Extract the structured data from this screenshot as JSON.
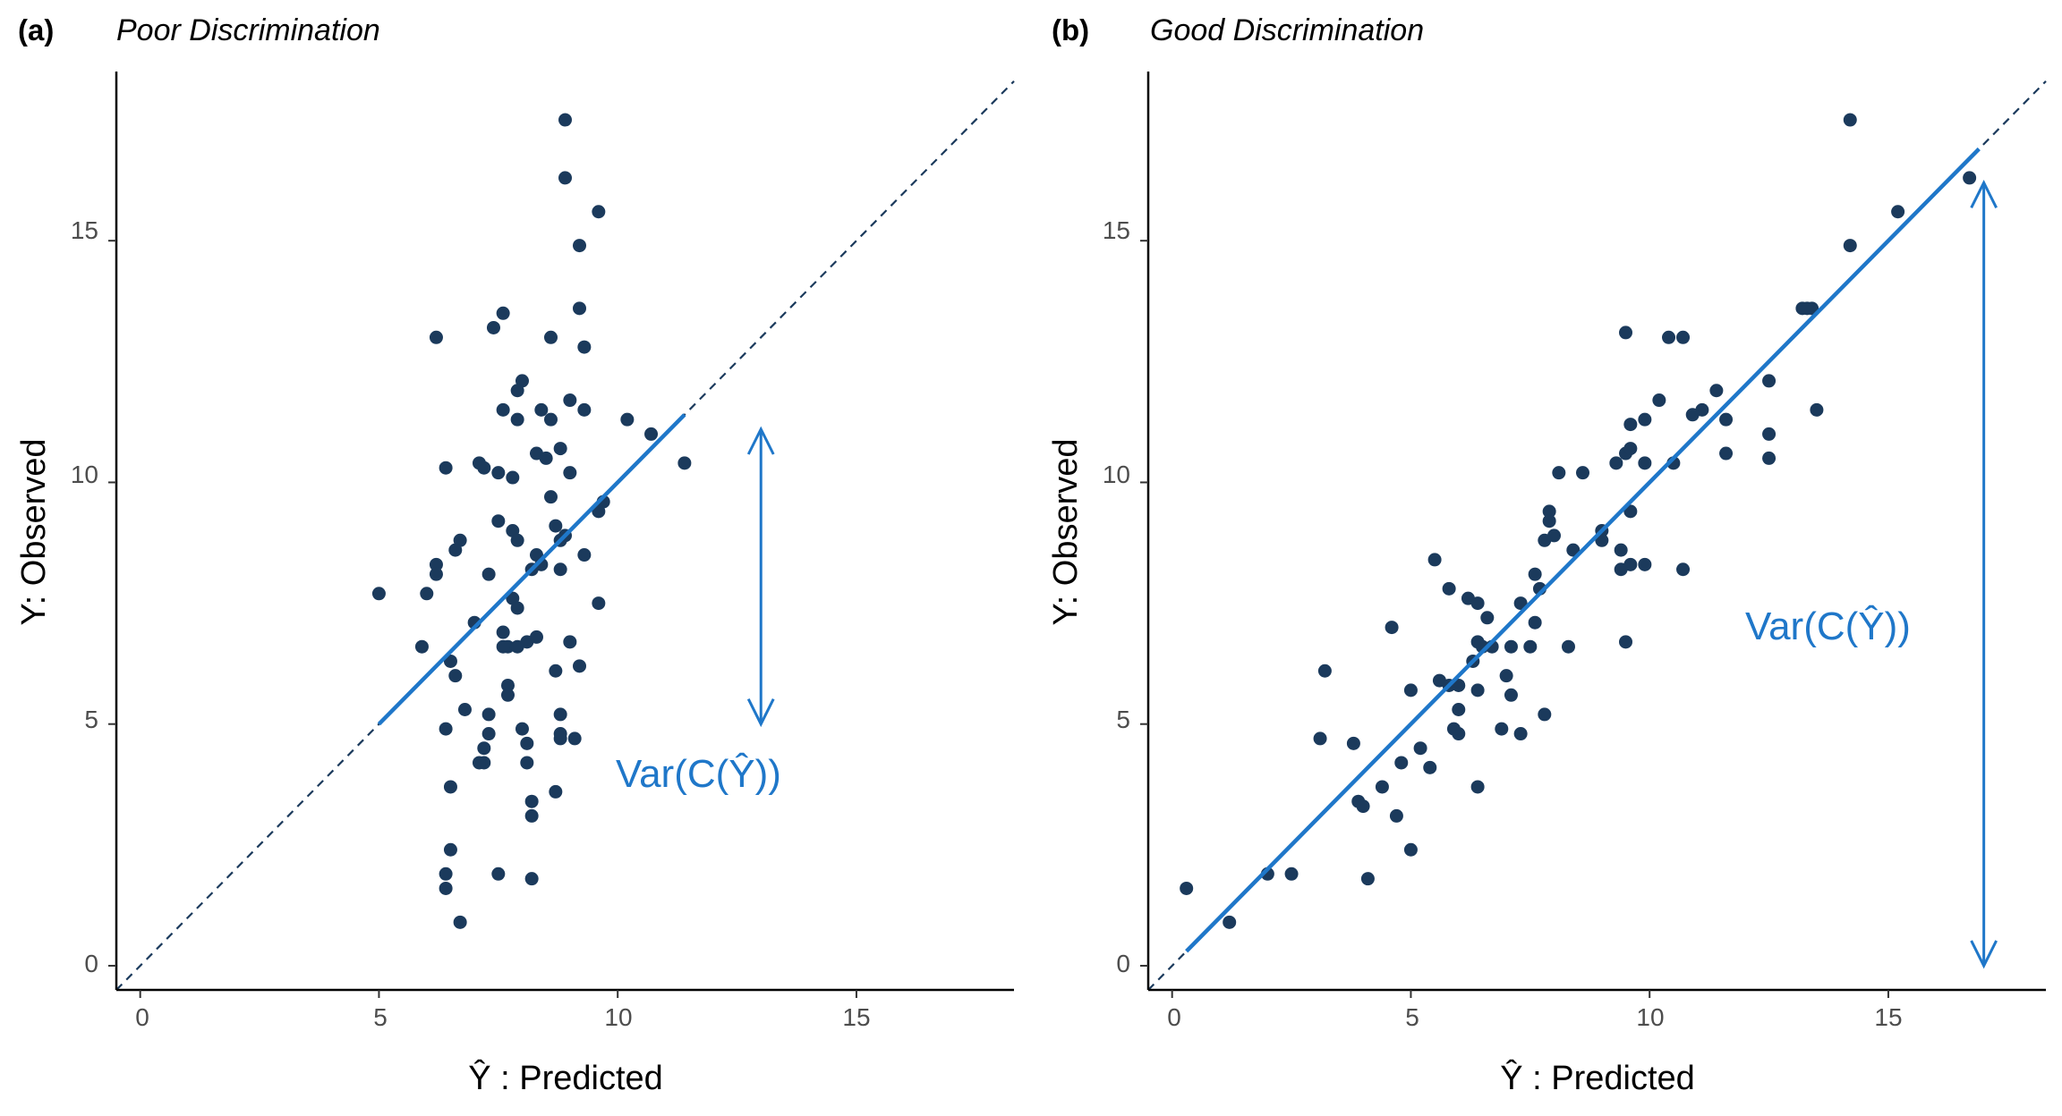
{
  "chart_data": [
    {
      "type": "scatter",
      "panel_tag": "(a)",
      "title": "Poor Discrimination",
      "xlabel": "Ŷ : Predicted",
      "ylabel": "Y: Observed",
      "xlim": [
        -0.5,
        18.3
      ],
      "ylim": [
        -0.5,
        18.5
      ],
      "xticks": [
        "0",
        "5",
        "10",
        "15"
      ],
      "yticks": [
        "0",
        "5",
        "10",
        "15"
      ],
      "grid": false,
      "identity_line": "y = x (dashed)",
      "fit_line": {
        "x": [
          5.0,
          11.4
        ],
        "y": [
          5.0,
          11.4
        ]
      },
      "annotation": {
        "text": "Var(C(Ŷ))",
        "arrow_x": 13.0,
        "arrow_y": [
          5.0,
          11.1
        ]
      },
      "colors": {
        "points": "#1b3a5c",
        "line": "#1f77c9",
        "identity": "#1b3a5c"
      },
      "x": [
        8.9,
        8.9,
        9.6,
        9.2,
        9.2,
        7.6,
        7.4,
        6.2,
        8.6,
        9.3,
        8.0,
        7.9,
        9.0,
        8.4,
        7.6,
        9.3,
        7.9,
        10.2,
        10.7,
        11.4,
        8.6,
        8.3,
        8.8,
        7.1,
        7.2,
        6.4,
        7.5,
        8.5,
        7.8,
        9.0,
        9.7,
        9.6,
        8.6,
        7.5,
        7.8,
        8.7,
        8.9,
        7.9,
        8.8,
        6.7,
        6.6,
        9.3,
        8.3,
        8.4,
        8.8,
        6.2,
        8.2,
        6.2,
        9.6,
        7.3,
        7.8,
        6.0,
        7.0,
        7.9,
        5.0,
        8.1,
        7.6,
        7.7,
        5.9,
        6.5,
        6.6,
        9.0,
        7.6,
        7.9,
        8.3,
        7.7,
        9.2,
        8.7,
        6.8,
        7.3,
        8.8,
        7.7,
        7.3,
        6.4,
        8.0,
        8.8,
        8.8,
        8.1,
        7.2,
        7.2,
        9.1,
        7.1,
        8.1,
        6.5,
        8.7,
        8.2,
        8.2,
        6.5,
        6.4,
        6.4,
        7.5,
        8.2,
        6.7
      ],
      "y": [
        17.5,
        16.3,
        15.6,
        14.9,
        13.6,
        13.5,
        13.2,
        13.0,
        13.0,
        12.8,
        12.1,
        11.9,
        11.7,
        11.5,
        11.5,
        11.5,
        11.3,
        11.3,
        11.0,
        10.4,
        11.3,
        10.6,
        10.7,
        10.4,
        10.3,
        10.3,
        10.2,
        10.5,
        10.1,
        10.2,
        9.6,
        9.4,
        9.7,
        9.2,
        9.0,
        9.1,
        8.9,
        8.8,
        8.8,
        8.8,
        8.6,
        8.5,
        8.5,
        8.3,
        8.2,
        8.3,
        8.2,
        8.1,
        7.5,
        8.1,
        7.6,
        7.7,
        7.1,
        7.4,
        7.7,
        6.7,
        6.9,
        6.6,
        6.6,
        6.3,
        6.0,
        6.7,
        6.6,
        6.6,
        6.8,
        5.8,
        6.2,
        6.1,
        5.3,
        5.2,
        5.2,
        5.6,
        4.8,
        4.9,
        4.9,
        4.8,
        4.7,
        4.6,
        4.5,
        4.2,
        4.7,
        4.2,
        4.2,
        3.7,
        3.6,
        3.4,
        3.1,
        2.4,
        1.9,
        1.6,
        1.9,
        1.8,
        0.9
      ]
    },
    {
      "type": "scatter",
      "panel_tag": "(b)",
      "title": "Good Discrimination",
      "xlabel": "Ŷ : Predicted",
      "ylabel": "Y: Observed",
      "xlim": [
        -0.5,
        18.3
      ],
      "ylim": [
        -0.5,
        18.5
      ],
      "xticks": [
        "0",
        "5",
        "10",
        "15"
      ],
      "yticks": [
        "0",
        "5",
        "10",
        "15"
      ],
      "grid": false,
      "identity_line": "y = x (dashed)",
      "fit_line": {
        "x": [
          0.3,
          16.9
        ],
        "y": [
          0.3,
          16.9
        ]
      },
      "annotation": {
        "text": "Var(C(Ŷ))",
        "arrow_x": 17.0,
        "arrow_y": [
          0.0,
          16.2
        ]
      },
      "colors": {
        "points": "#1b3a5c",
        "line": "#1f77c9",
        "identity": "#1b3a5c"
      },
      "x": [
        14.2,
        16.7,
        15.2,
        14.2,
        13.2,
        13.4,
        13.3,
        9.5,
        10.4,
        10.7,
        12.5,
        11.4,
        10.2,
        11.1,
        10.9,
        9.9,
        9.6,
        12.5,
        13.5,
        11.6,
        9.5,
        9.3,
        9.6,
        9.9,
        10.5,
        11.6,
        12.5,
        8.1,
        8.6,
        7.9,
        7.9,
        9.6,
        9.0,
        8.0,
        8.4,
        7.8,
        9.0,
        9.4,
        7.6,
        7.7,
        9.9,
        10.7,
        9.4,
        9.6,
        5.5,
        5.8,
        6.2,
        6.4,
        6.6,
        7.3,
        7.6,
        4.6,
        6.5,
        7.5,
        7.1,
        6.3,
        6.4,
        7.0,
        8.3,
        9.5,
        6.7,
        3.2,
        5.0,
        7.1,
        5.6,
        5.8,
        6.0,
        6.4,
        6.0,
        7.8,
        6.0,
        5.9,
        6.9,
        7.3,
        3.1,
        5.2,
        3.8,
        4.8,
        5.4,
        6.4,
        4.4,
        3.9,
        4.0,
        4.7,
        4.1,
        5.0,
        2.0,
        2.5,
        0.3,
        1.2
      ],
      "y": [
        17.5,
        16.3,
        15.6,
        14.9,
        13.6,
        13.6,
        13.6,
        13.1,
        13.0,
        13.0,
        12.1,
        11.9,
        11.7,
        11.5,
        11.4,
        11.3,
        11.2,
        11.0,
        11.5,
        11.3,
        10.6,
        10.4,
        10.7,
        10.4,
        10.4,
        10.6,
        10.5,
        10.2,
        10.2,
        9.4,
        9.2,
        9.4,
        9.0,
        8.9,
        8.6,
        8.8,
        8.8,
        8.6,
        8.1,
        7.8,
        8.3,
        8.2,
        8.2,
        8.3,
        8.4,
        7.8,
        7.6,
        7.5,
        7.2,
        7.5,
        7.1,
        7.0,
        6.6,
        6.6,
        6.6,
        6.3,
        6.7,
        6.0,
        6.6,
        6.7,
        6.6,
        6.1,
        5.7,
        5.6,
        5.9,
        5.8,
        5.8,
        5.7,
        5.3,
        5.2,
        4.8,
        4.9,
        4.9,
        4.8,
        4.7,
        4.5,
        4.6,
        4.2,
        4.1,
        3.7,
        3.7,
        3.4,
        3.3,
        3.1,
        1.8,
        2.4,
        1.9,
        1.9,
        1.6,
        0.9
      ]
    }
  ]
}
